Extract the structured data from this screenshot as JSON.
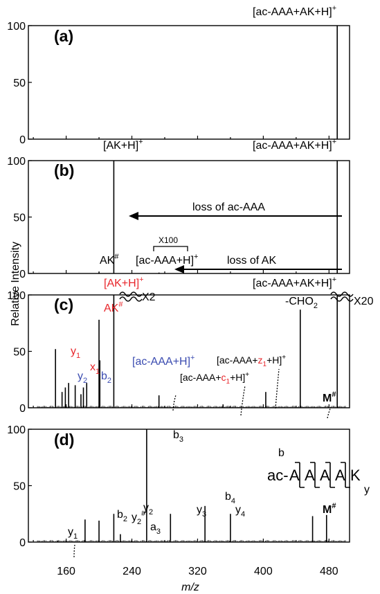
{
  "chart_data": {
    "type": "stacked-mass-spectra",
    "ylabel": "Relative Intensity",
    "xlabel": "m/z",
    "xlim": [
      114,
      505
    ],
    "x_ticks": [
      "160",
      "240",
      "320",
      "400",
      "480"
    ],
    "y_ticks": [
      "0",
      "50",
      "100"
    ],
    "ylim": [
      0,
      100
    ],
    "colors": {
      "black": "#000000",
      "red": "#e8262b",
      "blue": "#3a4bb0"
    },
    "panels": [
      {
        "label": "(a)",
        "peaks": [
          {
            "x": 490,
            "y": 100
          }
        ],
        "annotations": [
          {
            "text": "[ac-AAA+AK+H]",
            "sup": "+",
            "color": "black"
          }
        ]
      },
      {
        "label": "(b)",
        "peaks": [
          {
            "x": 218,
            "y": 100
          },
          {
            "x": 200,
            "y": 1
          },
          {
            "x": 273,
            "y": 0.8
          },
          {
            "x": 490,
            "y": 100
          }
        ],
        "annotations": [
          {
            "text": "[AK+H]",
            "sup": "+"
          },
          {
            "text": "[ac-AAA+AK+H]",
            "sup": "+"
          },
          {
            "text": "loss of ac-AAA"
          },
          {
            "text": "loss of AK"
          },
          {
            "text": "AK",
            "sup": "#"
          },
          {
            "text": "[ac-AAA+H]",
            "sup": "+"
          },
          {
            "text": "X100"
          }
        ]
      },
      {
        "label": "(c)",
        "peaks": [
          {
            "x": 147,
            "y": 52
          },
          {
            "x": 155,
            "y": 14
          },
          {
            "x": 159,
            "y": 18
          },
          {
            "x": 163,
            "y": 22
          },
          {
            "x": 171,
            "y": 20
          },
          {
            "x": 178,
            "y": 12
          },
          {
            "x": 181,
            "y": 18
          },
          {
            "x": 185,
            "y": 22
          },
          {
            "x": 200,
            "y": 78
          },
          {
            "x": 201,
            "y": 42
          },
          {
            "x": 218,
            "y": 100
          },
          {
            "x": 273,
            "y": 11
          },
          {
            "x": 351,
            "y": 3
          },
          {
            "x": 403,
            "y": 14
          },
          {
            "x": 445,
            "y": 87
          },
          {
            "x": 490,
            "y": 100
          }
        ],
        "annotations": [
          {
            "text": "[AK+H]",
            "sup": "+",
            "color": "red"
          },
          {
            "text": "AK",
            "sup": "#",
            "color": "red"
          },
          {
            "text": "X2"
          },
          {
            "text": "[ac-AAA+AK+H]",
            "sup": "+"
          },
          {
            "text": "-CHO",
            "sub": "2"
          },
          {
            "text": "X20"
          },
          {
            "text": "y",
            "sub": "1",
            "color": "red"
          },
          {
            "text": "y",
            "sub": "2",
            "color": "blue"
          },
          {
            "text": "x",
            "sub": "1",
            "color": "red"
          },
          {
            "text": "b",
            "sub": "2",
            "color": "blue"
          },
          {
            "text": "[ac-AAA+H]",
            "sup": "+",
            "color": "blue"
          },
          {
            "text": "[ac-AAA+z1+H]",
            "sup": "+"
          },
          {
            "text": "[ac-AAA+c1+H]",
            "sup": "+"
          },
          {
            "text": "M",
            "sup": "#"
          }
        ]
      },
      {
        "label": "(d)",
        "peaks": [
          {
            "x": 150,
            "y": 1
          },
          {
            "x": 183,
            "y": 20
          },
          {
            "x": 200,
            "y": 19
          },
          {
            "x": 218,
            "y": 25
          },
          {
            "x": 226,
            "y": 7
          },
          {
            "x": 258,
            "y": 100
          },
          {
            "x": 287,
            "y": 25
          },
          {
            "x": 329,
            "y": 32
          },
          {
            "x": 360,
            "y": 25
          },
          {
            "x": 460,
            "y": 23
          },
          {
            "x": 477,
            "y": 24
          }
        ],
        "annotations": [
          {
            "text": "b",
            "sub": "3"
          },
          {
            "text": "y",
            "sub": "1"
          },
          {
            "text": "b",
            "sub": "2"
          },
          {
            "text": "y",
            "sub": "2",
            "sup": "#"
          },
          {
            "text": "y",
            "sub": "2"
          },
          {
            "text": "a",
            "sub": "3"
          },
          {
            "text": "y",
            "sub": "3"
          },
          {
            "text": "b",
            "sub": "4"
          },
          {
            "text": "y",
            "sub": "4"
          },
          {
            "text": "M",
            "sup": "#"
          }
        ],
        "sequence": {
          "prefix": "ac-",
          "residues": [
            "A",
            "A",
            "A",
            "A",
            "K"
          ],
          "top_label": "b",
          "bottom_label": "y"
        }
      }
    ]
  }
}
